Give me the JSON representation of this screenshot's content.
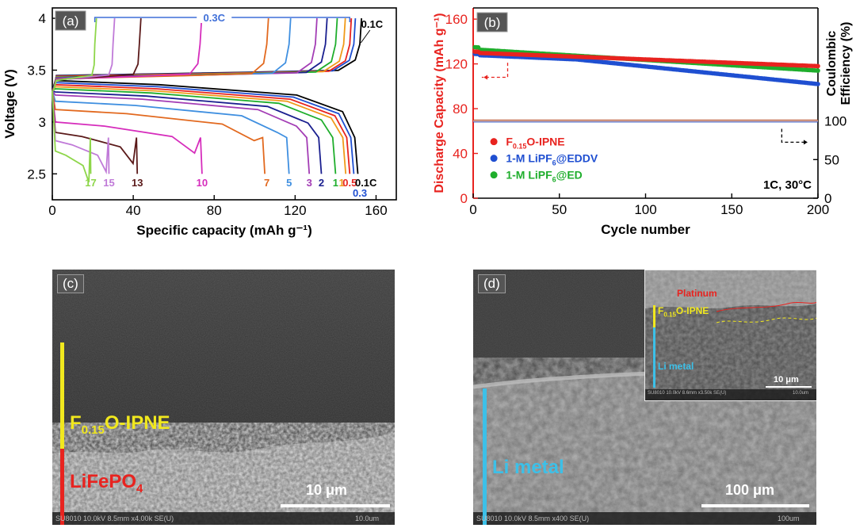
{
  "panels": {
    "a": {
      "tag": "(a)"
    },
    "b": {
      "tag": "(b)"
    },
    "c": {
      "tag": "(c)"
    },
    "d": {
      "tag": "(d)"
    }
  },
  "chart_data": [
    {
      "type": "line",
      "panel": "a",
      "xlabel": "Specific capacity (mAh g⁻¹)",
      "ylabel": "Voltage (V)",
      "xlim": [
        0,
        170
      ],
      "ylim": [
        2.25,
        4.1
      ],
      "xticks": [
        0,
        40,
        80,
        120,
        160
      ],
      "yticks": [
        2.5,
        3,
        3.5,
        4
      ],
      "top_annotation": "0.3C",
      "top_annotation_01": "0.1C",
      "grid": false,
      "series": [
        {
          "name": "0.1C",
          "color": "#000000",
          "charge_end": 152,
          "discharge_end": 151,
          "discharge_plateau": 3.38
        },
        {
          "name": "0.3",
          "color": "#1f4fd1",
          "charge_end": 149,
          "discharge_end": 149,
          "discharge_plateau": 3.36
        },
        {
          "name": "0.5",
          "color": "#e8231f",
          "charge_end": 147,
          "discharge_end": 147,
          "discharge_plateau": 3.34
        },
        {
          "name": "1",
          "color": "#f09a1a",
          "charge_end": 144,
          "discharge_end": 145,
          "discharge_plateau": 3.32
        },
        {
          "name": "1",
          "color": "#1fae2c",
          "charge_end": 140,
          "discharge_end": 140,
          "discharge_plateau": 3.3
        },
        {
          "name": "2",
          "color": "#1a1f8f",
          "charge_end": 135,
          "discharge_end": 133,
          "discharge_plateau": 3.27
        },
        {
          "name": "3",
          "color": "#a33db5",
          "charge_end": 130,
          "discharge_end": 127,
          "discharge_plateau": 3.24
        },
        {
          "name": "5",
          "color": "#3f8fe0",
          "charge_end": 117,
          "discharge_end": 117,
          "discharge_plateau": 3.18
        },
        {
          "name": "7",
          "color": "#e2691f",
          "charge_end": 106,
          "discharge_end": 105,
          "discharge_plateau": 3.1
        },
        {
          "name": "10",
          "color": "#d62dbc",
          "charge_end": 73,
          "discharge_end": 74,
          "discharge_plateau": 2.98
        },
        {
          "name": "13",
          "color": "#5b1a1a",
          "charge_end": 43,
          "discharge_end": 42,
          "discharge_plateau": 2.88
        },
        {
          "name": "15",
          "color": "#c07ad8",
          "charge_end": 30,
          "discharge_end": 28,
          "discharge_plateau": 2.8
        },
        {
          "name": "17",
          "color": "#8ed64a",
          "charge_end": 21,
          "discharge_end": 19,
          "discharge_plateau": 2.7
        }
      ]
    },
    {
      "type": "scatter",
      "panel": "b",
      "xlabel": "Cycle number",
      "ylabel": "Discharge Capacity (mAh g⁻¹)",
      "ylabel2": "Coulombic Efficiency (%)",
      "xlim": [
        0,
        200
      ],
      "ylim": [
        0,
        170
      ],
      "ylim2": [
        0,
        170
      ],
      "xticks": [
        0,
        50,
        100,
        150,
        200
      ],
      "yticks": [
        0,
        40,
        80,
        120,
        160
      ],
      "yticks2_labels": [
        "0",
        "50",
        "100"
      ],
      "annotation": "1C, 30°C",
      "legend_position": "bottom-left",
      "series": [
        {
          "name": "F0.15O-IPNE",
          "color": "#e8231f",
          "capacity_start": 130,
          "capacity_end": 118,
          "ce": 100
        },
        {
          "name": "1-M LiPF6@EDDV",
          "color": "#1f4fd1",
          "capacity_start": 128,
          "capacity_end": 102,
          "ce": 100
        },
        {
          "name": "1-M LiPF6@ED",
          "color": "#1fae2c",
          "capacity_start": 133,
          "capacity_end": 114,
          "ce": 100
        }
      ]
    }
  ],
  "legend_b": {
    "red": {
      "main": "F",
      "sub": "0.15",
      "tail": "O-IPNE"
    },
    "blue": {
      "main": "1-M LiPF",
      "sub": "6",
      "tail": "@EDDV"
    },
    "green": {
      "main": "1-M LiPF",
      "sub": "6",
      "tail": "@ED"
    }
  },
  "sem_c": {
    "layer_top": {
      "main": "F",
      "sub": "0.15",
      "tail": "O-IPNE"
    },
    "layer_bottom": {
      "main": "LiFePO",
      "sub": "4"
    },
    "scalebar": "10 μm",
    "footer": "SU8010 10.0kV 8.5mm x4.00k SE(U)",
    "footer_right": "10.0um"
  },
  "sem_d": {
    "layer_main": "Li metal",
    "scalebar": "100 μm",
    "footer": "SU8010 10.0kV 8.5mm x400 SE(U)",
    "footer_right": "100um",
    "inset": {
      "label_platinum": "Platinum",
      "layer_top": {
        "main": "F",
        "sub": "0.15",
        "tail": "O-IPNE"
      },
      "layer_bottom": "Li metal",
      "scalebar": "10 μm",
      "footer": "SU8010 10.0kV 8.6mm x3.50k SE(U)",
      "footer_right": "10.0um"
    }
  }
}
